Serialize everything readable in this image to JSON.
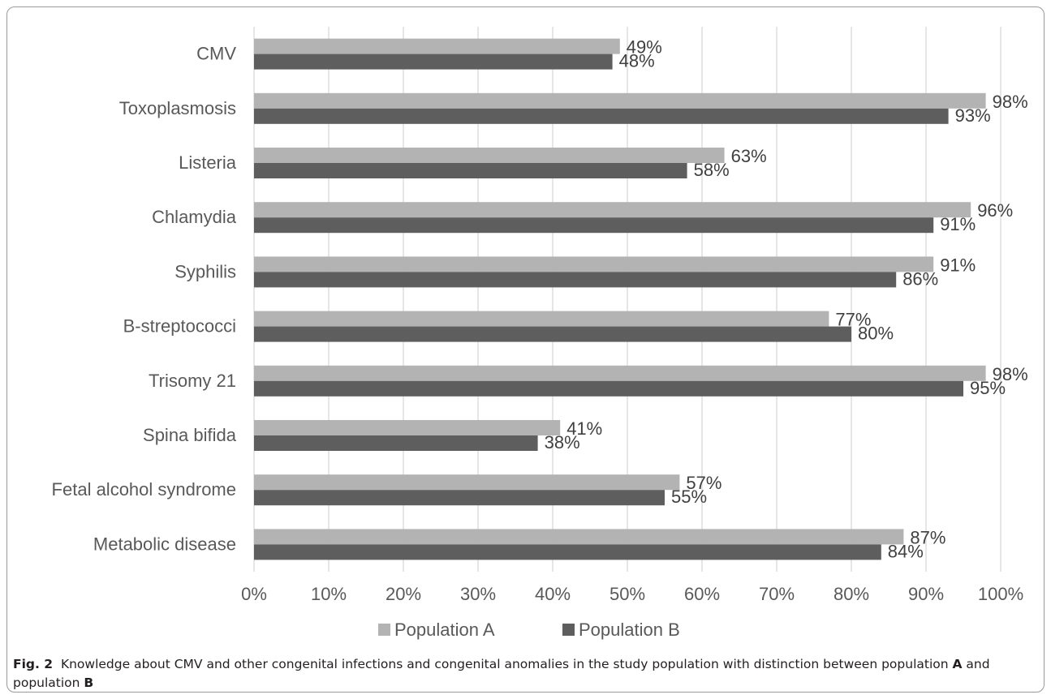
{
  "chart_data": {
    "type": "bar",
    "orientation": "horizontal",
    "categories": [
      "CMV",
      "Toxoplasmosis",
      "Listeria",
      "Chlamydia",
      "Syphilis",
      "B-streptococci",
      "Trisomy 21",
      "Spina bifida",
      "Fetal alcohol syndrome",
      "Metabolic disease"
    ],
    "series": [
      {
        "name": "Population A",
        "color": "#b3b3b3",
        "values": [
          49,
          98,
          63,
          96,
          91,
          77,
          98,
          41,
          57,
          87
        ]
      },
      {
        "name": "Population B",
        "color": "#5e5e5e",
        "values": [
          48,
          93,
          58,
          91,
          86,
          80,
          95,
          38,
          55,
          84
        ]
      }
    ],
    "xlim": [
      0,
      100
    ],
    "x_ticks": [
      "0%",
      "10%",
      "20%",
      "30%",
      "40%",
      "50%",
      "60%",
      "70%",
      "80%",
      "90%",
      "100%"
    ],
    "value_suffix": "%",
    "grid": "vertical",
    "legend_position": "bottom",
    "title": "",
    "xlabel": "",
    "ylabel": ""
  },
  "caption": {
    "label": "Fig. 2",
    "text_1": "Knowledge about CMV and other congenital infections and congenital anomalies in the study population with distinction between population ",
    "bold_1": "A",
    "text_2": " and population ",
    "bold_2": "B"
  }
}
